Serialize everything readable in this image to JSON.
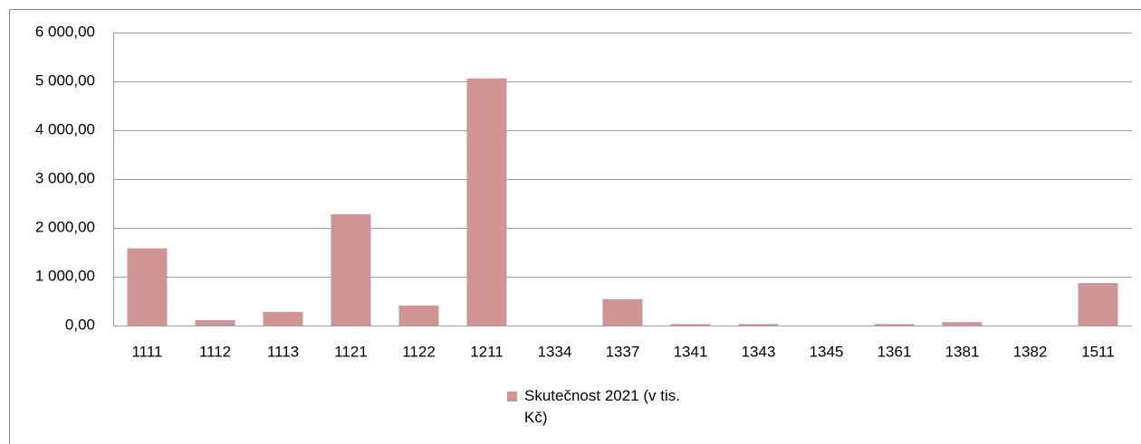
{
  "chart_data": {
    "type": "bar",
    "categories": [
      "1111",
      "1112",
      "1113",
      "1121",
      "1122",
      "1211",
      "1334",
      "1337",
      "1341",
      "1343",
      "1345",
      "1361",
      "1381",
      "1382",
      "1511"
    ],
    "series": [
      {
        "name": "Skutečnost 2021 (v tis. Kč)",
        "color": "#d09494",
        "values": [
          1580,
          110,
          280,
          2280,
          410,
          5060,
          0,
          540,
          30,
          30,
          0,
          30,
          70,
          0,
          870
        ]
      }
    ],
    "ylim": [
      0,
      6000
    ],
    "yticks": [
      {
        "value": 0,
        "label": "0,00"
      },
      {
        "value": 1000,
        "label": "1 000,00"
      },
      {
        "value": 2000,
        "label": "2 000,00"
      },
      {
        "value": 3000,
        "label": "3 000,00"
      },
      {
        "value": 4000,
        "label": "4 000,00"
      },
      {
        "value": 5000,
        "label": "5 000,00"
      },
      {
        "value": 6000,
        "label": "6 000,00"
      }
    ],
    "grid": true,
    "legend": "bottom"
  }
}
